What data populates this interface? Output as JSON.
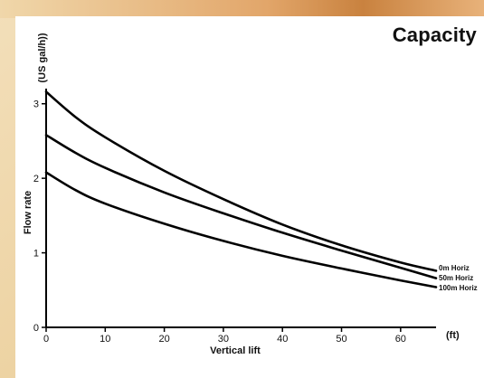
{
  "chart_data": {
    "type": "line",
    "title": "Capacity",
    "xlabel": "Vertical lift",
    "xunit": "(ft)",
    "ylabel": "Flow rate",
    "yunit": "(US gal/h))",
    "xlim": [
      0,
      66
    ],
    "ylim": [
      0,
      3.3
    ],
    "xticks": [
      0,
      10,
      20,
      30,
      40,
      50,
      60
    ],
    "yticks": [
      0,
      1,
      2,
      3
    ],
    "grid": false,
    "legend": "series labels at right end of lines",
    "series": [
      {
        "name": "0m Horiz",
        "x": [
          0,
          5,
          10,
          20,
          30,
          40,
          50,
          60,
          66
        ],
        "values": [
          3.16,
          2.82,
          2.55,
          2.1,
          1.72,
          1.38,
          1.1,
          0.87,
          0.76
        ]
      },
      {
        "name": "50m Horiz",
        "x": [
          0,
          5,
          10,
          20,
          30,
          40,
          50,
          60,
          66
        ],
        "values": [
          2.58,
          2.34,
          2.14,
          1.81,
          1.53,
          1.27,
          1.03,
          0.8,
          0.66
        ]
      },
      {
        "name": "100m Horiz",
        "x": [
          0,
          5,
          10,
          20,
          30,
          40,
          50,
          60,
          66
        ],
        "values": [
          2.08,
          1.84,
          1.66,
          1.39,
          1.16,
          0.96,
          0.79,
          0.63,
          0.54
        ]
      }
    ]
  }
}
